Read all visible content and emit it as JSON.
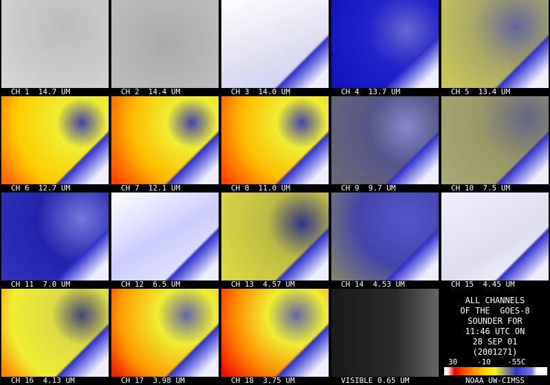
{
  "panels": [
    {
      "label": "CH 1  14.7 UM"
    },
    {
      "label": "CH 2  14.4 UM"
    },
    {
      "label": "CH 3  14.0 UM"
    },
    {
      "label": "CH 4  13.7 UM"
    },
    {
      "label": "CH 5  13.4 UM"
    },
    {
      "label": "CH 6  12.7 UM"
    },
    {
      "label": "CH 7  12.1 UM"
    },
    {
      "label": "CH 8  11.0 UM"
    },
    {
      "label": "CH 9  9.7 UM"
    },
    {
      "label": "CH 10  7.5 UM"
    },
    {
      "label": "CH 11  7.0 UM"
    },
    {
      "label": "CH 12  6.5 UM"
    },
    {
      "label": "CH 13  4.57 UM"
    },
    {
      "label": "CH 14  4.53 UM"
    },
    {
      "label": "CH 15  4.45 UM"
    },
    {
      "label": "CH 16  4.13 UM"
    },
    {
      "label": "CH 17  3.98 UM"
    },
    {
      "label": "CH 18  3.75 UM"
    },
    {
      "label": "VISIBLE 0.65 UM"
    }
  ],
  "info": {
    "lines": [
      "ALL CHANNELS",
      "OF THE  GOES-8",
      "SOUNDER FOR",
      "11:46 UTC ON",
      "28 SEP 01",
      "(2001271)"
    ],
    "scale_labels": [
      "30",
      "-10",
      "-55C"
    ],
    "credit": "NOAA UW-CIMSS"
  }
}
